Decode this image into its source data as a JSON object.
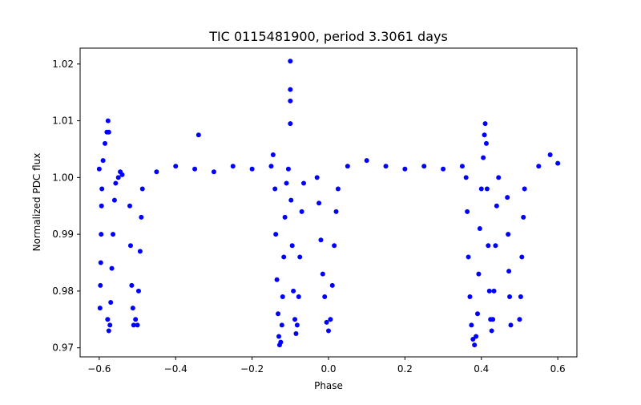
{
  "chart_data": {
    "type": "scatter",
    "title": "TIC 0115481900, period 3.3061 days",
    "xlabel": "Phase",
    "ylabel": "Normalized PDC flux",
    "xlim": [
      -0.65,
      0.65
    ],
    "ylim": [
      0.9684,
      1.0228
    ],
    "grid": false,
    "legend": "none",
    "marker_color": "#0000ff",
    "xticks": [
      -0.6,
      -0.4,
      -0.2,
      0.0,
      0.2,
      0.4,
      0.6
    ],
    "xtick_labels": [
      "−0.6",
      "−0.4",
      "−0.2",
      "0.0",
      "0.2",
      "0.4",
      "0.6"
    ],
    "yticks": [
      0.97,
      0.98,
      0.99,
      1.0,
      1.01,
      1.02
    ],
    "ytick_labels": [
      "0.97",
      "0.98",
      "0.99",
      "1.00",
      "1.01",
      "1.02"
    ],
    "series": [
      {
        "values_note": "",
        "points": [
          [
            -0.6,
            1.0015
          ],
          [
            -0.598,
            0.977
          ],
          [
            -0.597,
            0.981
          ],
          [
            -0.596,
            0.985
          ],
          [
            -0.595,
            0.99
          ],
          [
            -0.594,
            0.995
          ],
          [
            -0.593,
            0.998
          ],
          [
            -0.59,
            1.003
          ],
          [
            -0.585,
            1.006
          ],
          [
            -0.58,
            1.008
          ],
          [
            -0.577,
            1.01
          ],
          [
            -0.575,
            1.008
          ],
          [
            -0.578,
            0.975
          ],
          [
            -0.575,
            0.973
          ],
          [
            -0.572,
            0.974
          ],
          [
            -0.57,
            0.978
          ],
          [
            -0.567,
            0.984
          ],
          [
            -0.564,
            0.99
          ],
          [
            -0.56,
            0.996
          ],
          [
            -0.557,
            0.999
          ],
          [
            -0.55,
            1.0
          ],
          [
            -0.545,
            1.001
          ],
          [
            -0.54,
            1.0005
          ],
          [
            -0.52,
            0.995
          ],
          [
            -0.518,
            0.988
          ],
          [
            -0.515,
            0.981
          ],
          [
            -0.512,
            0.977
          ],
          [
            -0.51,
            0.974
          ],
          [
            -0.505,
            0.975
          ],
          [
            -0.5,
            0.974
          ],
          [
            -0.497,
            0.98
          ],
          [
            -0.493,
            0.987
          ],
          [
            -0.49,
            0.993
          ],
          [
            -0.487,
            0.998
          ],
          [
            -0.45,
            1.001
          ],
          [
            -0.4,
            1.002
          ],
          [
            -0.35,
            1.0015
          ],
          [
            -0.34,
            1.0075
          ],
          [
            -0.3,
            1.001
          ],
          [
            -0.25,
            1.002
          ],
          [
            -0.2,
            1.0015
          ],
          [
            -0.15,
            1.002
          ],
          [
            -0.145,
            1.004
          ],
          [
            -0.14,
            0.998
          ],
          [
            -0.138,
            0.99
          ],
          [
            -0.135,
            0.982
          ],
          [
            -0.132,
            0.976
          ],
          [
            -0.13,
            0.972
          ],
          [
            -0.128,
            0.9705
          ],
          [
            -0.125,
            0.971
          ],
          [
            -0.122,
            0.974
          ],
          [
            -0.12,
            0.979
          ],
          [
            -0.117,
            0.986
          ],
          [
            -0.114,
            0.993
          ],
          [
            -0.11,
            0.999
          ],
          [
            -0.105,
            1.0015
          ],
          [
            -0.1,
            1.0205
          ],
          [
            -0.1,
            1.0155
          ],
          [
            -0.1,
            1.0135
          ],
          [
            -0.1,
            1.0095
          ],
          [
            -0.098,
            0.996
          ],
          [
            -0.095,
            0.988
          ],
          [
            -0.092,
            0.98
          ],
          [
            -0.088,
            0.975
          ],
          [
            -0.085,
            0.9725
          ],
          [
            -0.082,
            0.974
          ],
          [
            -0.078,
            0.979
          ],
          [
            -0.075,
            0.986
          ],
          [
            -0.07,
            0.994
          ],
          [
            -0.065,
            0.999
          ],
          [
            -0.03,
            1.0
          ],
          [
            -0.025,
            0.9955
          ],
          [
            -0.02,
            0.989
          ],
          [
            -0.015,
            0.983
          ],
          [
            -0.01,
            0.979
          ],
          [
            -0.005,
            0.9745
          ],
          [
            0.0,
            0.973
          ],
          [
            0.005,
            0.975
          ],
          [
            0.01,
            0.981
          ],
          [
            0.015,
            0.988
          ],
          [
            0.02,
            0.994
          ],
          [
            0.025,
            0.998
          ],
          [
            0.05,
            1.002
          ],
          [
            0.1,
            1.003
          ],
          [
            0.15,
            1.002
          ],
          [
            0.2,
            1.0015
          ],
          [
            0.25,
            1.002
          ],
          [
            0.3,
            1.0015
          ],
          [
            0.35,
            1.002
          ],
          [
            0.36,
            1.0
          ],
          [
            0.363,
            0.994
          ],
          [
            0.366,
            0.986
          ],
          [
            0.37,
            0.979
          ],
          [
            0.374,
            0.974
          ],
          [
            0.378,
            0.9715
          ],
          [
            0.382,
            0.9705
          ],
          [
            0.386,
            0.972
          ],
          [
            0.39,
            0.976
          ],
          [
            0.393,
            0.983
          ],
          [
            0.396,
            0.991
          ],
          [
            0.4,
            0.998
          ],
          [
            0.405,
            1.0035
          ],
          [
            0.408,
            1.0075
          ],
          [
            0.41,
            1.0095
          ],
          [
            0.413,
            1.006
          ],
          [
            0.415,
            0.998
          ],
          [
            0.418,
            0.988
          ],
          [
            0.421,
            0.98
          ],
          [
            0.424,
            0.975
          ],
          [
            0.427,
            0.973
          ],
          [
            0.43,
            0.975
          ],
          [
            0.433,
            0.98
          ],
          [
            0.437,
            0.988
          ],
          [
            0.44,
            0.995
          ],
          [
            0.445,
            1.0
          ],
          [
            0.468,
            0.9965
          ],
          [
            0.47,
            0.99
          ],
          [
            0.472,
            0.9835
          ],
          [
            0.474,
            0.979
          ],
          [
            0.477,
            0.974
          ],
          [
            0.5,
            0.975
          ],
          [
            0.503,
            0.979
          ],
          [
            0.506,
            0.986
          ],
          [
            0.51,
            0.993
          ],
          [
            0.513,
            0.998
          ],
          [
            0.55,
            1.002
          ],
          [
            0.58,
            1.004
          ],
          [
            0.6,
            1.0025
          ]
        ]
      }
    ]
  }
}
